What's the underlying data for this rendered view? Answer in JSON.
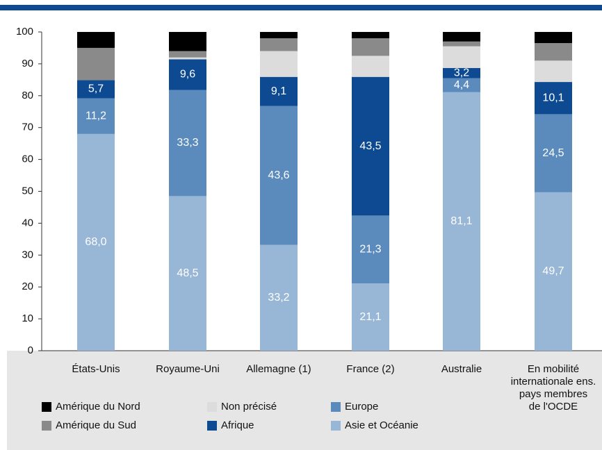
{
  "chart_data": {
    "type": "stacked_bar",
    "categories": [
      "États-Unis",
      "Royaume-Uni",
      "Allemagne (1)",
      "France (2)",
      "Australie",
      "En mobilité\ninternationale ens.\npays membres\nde l'OCDE"
    ],
    "series": [
      {
        "name": "Asie et Océanie",
        "color": "#98b6d6",
        "values": [
          68.0,
          48.5,
          33.2,
          21.1,
          81.1,
          49.7
        ],
        "value_labels": [
          "68,0",
          "48,5",
          "33,2",
          "21,1",
          "81,1",
          "49,7"
        ]
      },
      {
        "name": "Europe",
        "color": "#5b8bbd",
        "values": [
          11.2,
          33.3,
          43.6,
          21.3,
          4.4,
          24.5
        ],
        "value_labels": [
          "11,2",
          "33,3",
          "43,6",
          "21,3",
          "4,4",
          "24,5"
        ]
      },
      {
        "name": "Afrique",
        "color": "#0d4a92",
        "values": [
          5.7,
          9.6,
          9.1,
          43.5,
          3.2,
          10.1
        ],
        "value_labels": [
          "5,7",
          "9,6",
          "9,1",
          "43,5",
          "3,2",
          "10,1"
        ]
      },
      {
        "name": "Non précisé",
        "color": "#dcdcdc",
        "values": [
          0,
          0.6,
          8.1,
          6.6,
          6.8,
          6.7
        ]
      },
      {
        "name": "Amérique du Sud",
        "color": "#8a8a8a",
        "values": [
          10.1,
          2,
          4,
          5.5,
          1.5,
          5.5
        ]
      },
      {
        "name": "Amérique du Nord",
        "color": "#000000",
        "values": [
          5,
          6,
          2,
          2,
          3,
          3.5
        ]
      }
    ],
    "ylim": [
      0,
      100
    ],
    "yticks": [
      0,
      10,
      20,
      30,
      40,
      50,
      60,
      70,
      80,
      90,
      100
    ]
  }
}
